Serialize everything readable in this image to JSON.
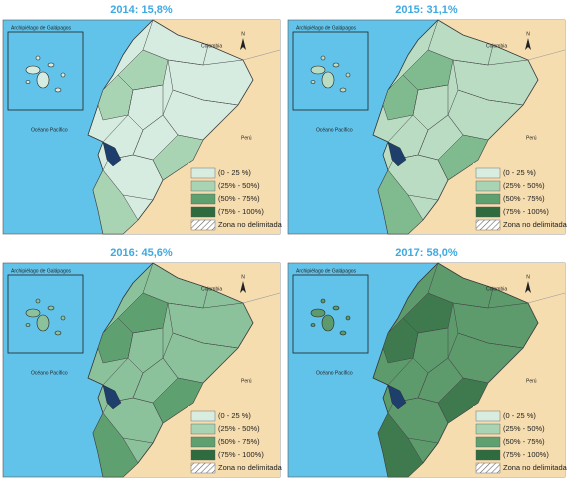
{
  "maps": [
    {
      "title": "2014: 15,8%",
      "fill": "#d6ece0",
      "accent": "#a9d4b4"
    },
    {
      "title": "2015: 31,1%",
      "fill": "#b9dcc3",
      "accent": "#7fbb8f"
    },
    {
      "title": "2016: 45,6%",
      "fill": "#8cc29b",
      "accent": "#5fa070"
    },
    {
      "title": "2017: 58,0%",
      "fill": "#5d9b6c",
      "accent": "#3f7a4f"
    }
  ],
  "labels": {
    "galapagos": "Archipiélago de Galápagos",
    "colombia": "Colombia",
    "ocean": "Océano Pacífico",
    "peru": "Perú",
    "north": "N"
  },
  "legend": [
    {
      "label": "(0 - 25 %)",
      "color": "#d8ede0"
    },
    {
      "label": "(25% - 50%)",
      "color": "#a9d4b4"
    },
    {
      "label": "(50% - 75%)",
      "color": "#5fa070"
    },
    {
      "label": "(75% - 100%)",
      "color": "#2e6b3f"
    },
    {
      "label": "Zona no delimitada",
      "color": "url(#hatch)"
    }
  ]
}
